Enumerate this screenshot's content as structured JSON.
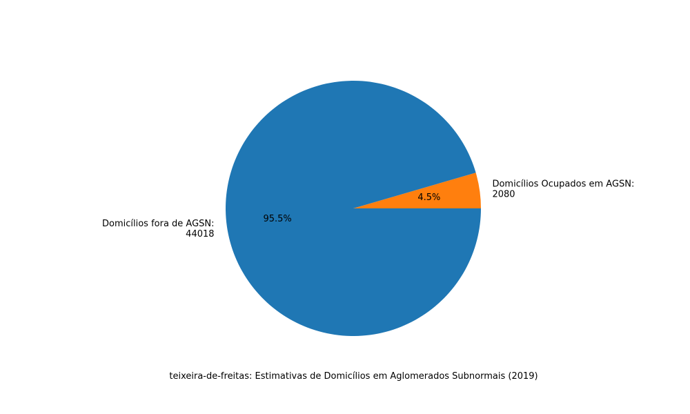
{
  "chart_data": {
    "type": "pie",
    "caption": "teixeira-de-freitas: Estimativas de Domicílios em Aglomerados Subnormais (2019)",
    "slices": [
      {
        "label_line1": "Domicílios Ocupados em AGSN:",
        "label_line2": "2080",
        "value": 2080,
        "pct_label": "4.5%",
        "color": "#ff7f0e"
      },
      {
        "label_line1": "Domicílios fora de AGSN:",
        "label_line2": "44018",
        "value": 44018,
        "pct_label": "95.5%",
        "color": "#1f77b4"
      }
    ],
    "start_angle_deg": 0,
    "direction": "counterclockwise",
    "legend": "none"
  }
}
